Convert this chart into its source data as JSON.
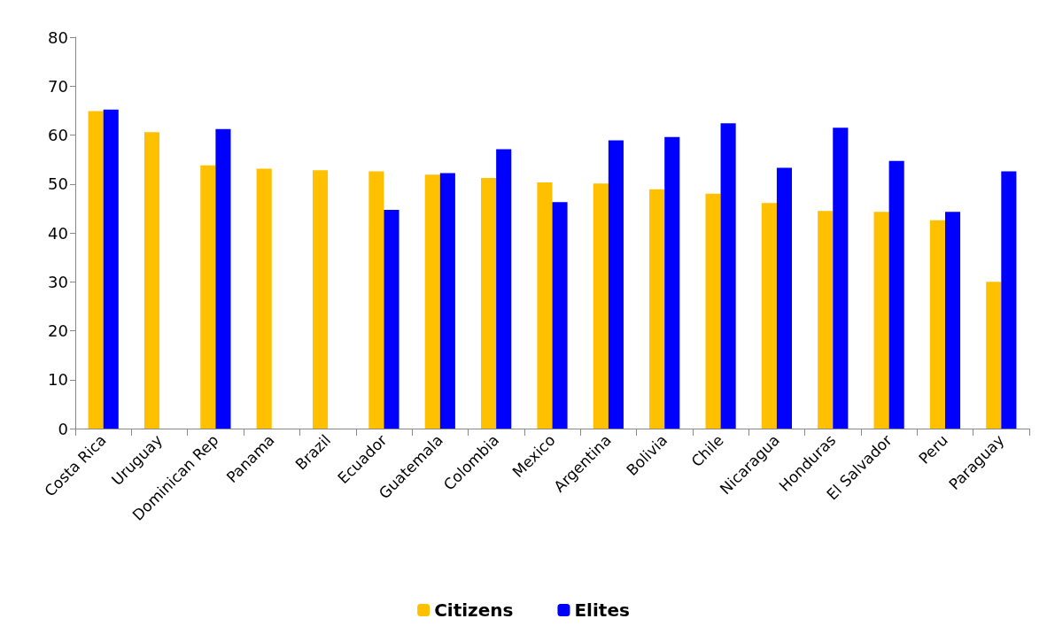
{
  "chart_data": {
    "type": "bar",
    "categories": [
      "Costa Rica",
      "Uruguay",
      "Dominican Rep",
      "Panama",
      "Brazil",
      "Ecuador",
      "Guatemala",
      "Colombia",
      "Mexico",
      "Argentina",
      "Bolivia",
      "Chile",
      "Nicaragua",
      "Honduras",
      "El Salvador",
      "Peru",
      "Paraguay"
    ],
    "series": [
      {
        "name": "Citizens",
        "color": "#ffc000",
        "values": [
          64.9,
          60.6,
          53.8,
          53.1,
          52.8,
          52.6,
          51.9,
          51.2,
          50.3,
          50.1,
          48.9,
          48.0,
          46.1,
          44.5,
          44.3,
          42.6,
          30.0
        ]
      },
      {
        "name": "Elites",
        "color": "#0000ff",
        "values": [
          65.2,
          null,
          61.2,
          null,
          null,
          44.7,
          52.2,
          57.1,
          46.3,
          58.9,
          59.6,
          62.4,
          53.3,
          61.5,
          54.7,
          44.3,
          52.6
        ]
      }
    ],
    "ylim": [
      0,
      80
    ],
    "yticks": [
      0,
      10,
      20,
      30,
      40,
      50,
      60,
      70,
      80
    ],
    "grid": false,
    "legend": "bottom"
  }
}
